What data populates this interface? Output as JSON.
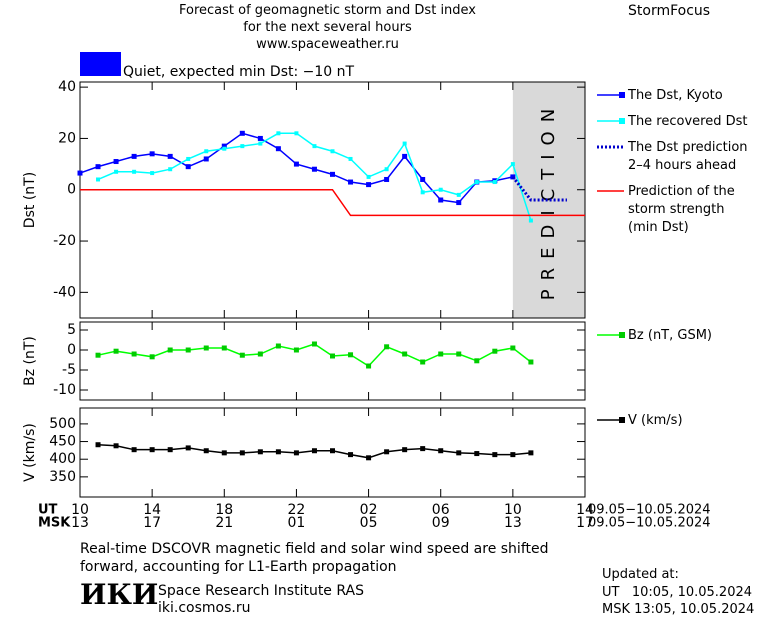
{
  "header": {
    "title_lines": [
      "Forecast of geomagnetic storm and Dst index",
      "for the next several hours",
      "www.spaceweather.ru"
    ],
    "brand": "StormFocus"
  },
  "chart_data": [
    {
      "type": "line",
      "ylabel": "Dst (nT)",
      "xlim": [
        0,
        28
      ],
      "ylim": [
        -50,
        42
      ],
      "xticks": [
        0,
        4,
        8,
        12,
        16,
        20,
        24,
        28
      ],
      "yticks": [
        -40,
        -20,
        0,
        20,
        40
      ],
      "annotation": {
        "text": "Quiet, expected min Dst: −10 nT",
        "color": "#0000ff"
      },
      "shaded_region": {
        "x": [
          24,
          28
        ],
        "label": "PREDICTION",
        "color": "#d9d9d9"
      },
      "series": [
        {
          "name": "The Dst, Kyoto",
          "color": "#0000ff",
          "marker": "square",
          "x": [
            0,
            1,
            2,
            3,
            4,
            5,
            6,
            7,
            8,
            9,
            10,
            11,
            12,
            13,
            14,
            15,
            16,
            17,
            18,
            19,
            20,
            21,
            22,
            23,
            24
          ],
          "values": [
            6.5,
            9,
            11,
            13,
            14,
            13,
            9,
            12,
            17,
            22,
            20,
            16,
            10,
            8,
            6,
            3,
            2,
            4,
            13,
            4,
            -4,
            -5,
            3,
            3.5,
            5
          ]
        },
        {
          "name": "The recovered Dst",
          "color": "#00ffff",
          "marker": "square",
          "x": [
            1,
            2,
            3,
            4,
            5,
            6,
            7,
            8,
            9,
            10,
            11,
            12,
            13,
            14,
            15,
            16,
            17,
            18,
            19,
            20,
            21,
            22,
            23,
            24,
            25
          ],
          "values": [
            4,
            7,
            7,
            6.5,
            8,
            12,
            15,
            16,
            17,
            18,
            22,
            22,
            17,
            15,
            12,
            5,
            8,
            18,
            -1,
            0,
            -2,
            3,
            3,
            10,
            -12
          ]
        },
        {
          "name": "The Dst prediction\n2–4 hours ahead",
          "color": "#0000cc",
          "dash": "dot",
          "x": [
            24,
            25,
            26,
            27
          ],
          "values": [
            5,
            -4,
            -4,
            -4
          ]
        },
        {
          "name": "Prediction of the\nstorm strength\n(min Dst)",
          "color": "#ff0000",
          "x": [
            0,
            14,
            15,
            28
          ],
          "values": [
            0,
            0,
            -10,
            -10
          ]
        }
      ]
    },
    {
      "type": "line",
      "ylabel": "Bz (nT)",
      "xlim": [
        0,
        28
      ],
      "ylim": [
        -12.5,
        7
      ],
      "xticks": [
        0,
        4,
        8,
        12,
        16,
        20,
        24,
        28
      ],
      "yticks": [
        -10,
        -5,
        0,
        5
      ],
      "series": [
        {
          "name": "Bz (nT, GSM)",
          "color": "#00ff00",
          "marker": "square",
          "x": [
            1,
            2,
            3,
            4,
            5,
            6,
            7,
            8,
            9,
            10,
            11,
            12,
            13,
            14,
            15,
            16,
            17,
            18,
            19,
            20,
            21,
            22,
            23,
            24,
            25
          ],
          "values": [
            -1.3,
            -0.3,
            -1,
            -1.7,
            0,
            0,
            0.5,
            0.5,
            -1.3,
            -1,
            1,
            0,
            1.5,
            -1.5,
            -1.2,
            -4,
            0.8,
            -1,
            -3,
            -1,
            -1,
            -2.7,
            -0.3,
            0.5,
            -3
          ]
        }
      ]
    },
    {
      "type": "line",
      "ylabel": "V (km/s)",
      "xlim": [
        0,
        28
      ],
      "ylim": [
        293,
        545
      ],
      "xticks": [
        {
          "value": 0,
          "label": "10"
        },
        {
          "value": 4,
          "label": "14"
        },
        {
          "value": 8,
          "label": "18"
        },
        {
          "value": 12,
          "label": "22"
        },
        {
          "value": 16,
          "label": "02"
        },
        {
          "value": 20,
          "label": "06"
        },
        {
          "value": 24,
          "label": "10"
        },
        {
          "value": 28,
          "label": "14"
        }
      ],
      "xticks_msk": [
        "13",
        "17",
        "21",
        "01",
        "05",
        "09",
        "13",
        "17"
      ],
      "x_row_labels": [
        "UT",
        "MSK"
      ],
      "x_row_dates": [
        "09.05−10.05.2024",
        "09.05−10.05.2024"
      ],
      "yticks": [
        350,
        400,
        450,
        500
      ],
      "series": [
        {
          "name": "V (km/s)",
          "color": "#000000",
          "marker": "square",
          "x": [
            1,
            2,
            3,
            4,
            5,
            6,
            7,
            8,
            9,
            10,
            11,
            12,
            13,
            14,
            15,
            16,
            17,
            18,
            19,
            20,
            21,
            22,
            23,
            24,
            25
          ],
          "values": [
            441,
            438,
            427,
            427,
            427,
            432,
            424,
            418,
            418,
            421,
            421,
            418,
            424,
            424,
            413,
            404,
            421,
            427,
            430,
            424,
            418,
            416,
            413,
            413,
            418
          ]
        }
      ]
    }
  ],
  "footer": {
    "note": "Real-time DSCOVR magnetic field and solar wind speed are shifted\nforward, accounting for L1-Earth propagation",
    "logo": "ИКИ",
    "institute": "Space Research Institute RAS",
    "site": "iki.cosmos.ru",
    "updated_label": "Updated at:",
    "updated_ut": "UT   10:05, 10.05.2024",
    "updated_msk": "MSK 13:05, 10.05.2024"
  }
}
